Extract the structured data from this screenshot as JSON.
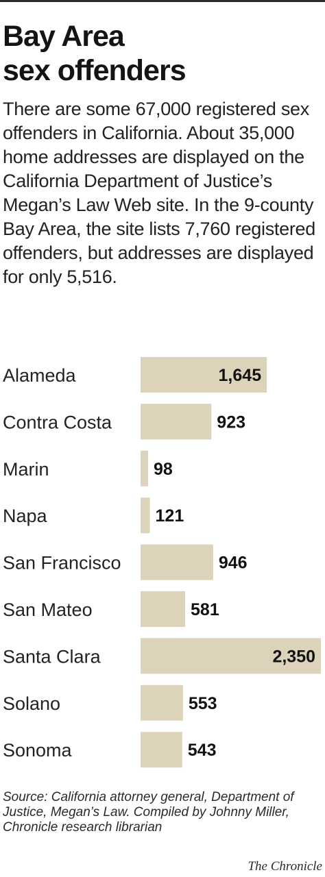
{
  "title_lines": [
    "Bay Area",
    "sex offenders"
  ],
  "intro": "There are some 67,000 registered sex offenders in California. About 35,000 home addresses are displayed on the California Department of Justice’s Megan’s Law Web site. In the 9-county Bay Area, the site lists 7,760 registered offenders, but addresses are displayed for only 5,516.",
  "chart_data": {
    "type": "bar",
    "orientation": "horizontal",
    "title": "",
    "xlabel": "",
    "ylabel": "",
    "categories": [
      "Alameda",
      "Contra Costa",
      "Marin",
      "Napa",
      "San Francisco",
      "San Mateo",
      "Santa Clara",
      "Solano",
      "Sonoma"
    ],
    "values": [
      1645,
      923,
      98,
      121,
      946,
      581,
      2350,
      553,
      543
    ],
    "value_labels": [
      "1,645",
      "923",
      "98",
      "121",
      "946",
      "581",
      "2,350",
      "553",
      "543"
    ],
    "xlim": [
      0,
      2350
    ],
    "grid": false,
    "legend": "none",
    "bar_color": "#ddd3ba"
  },
  "source": "Source: California attorney general, Department of Justice, Megan’s Law. Compiled by Johnny Miller, Chronicle research librarian",
  "credit": "The Chronicle"
}
